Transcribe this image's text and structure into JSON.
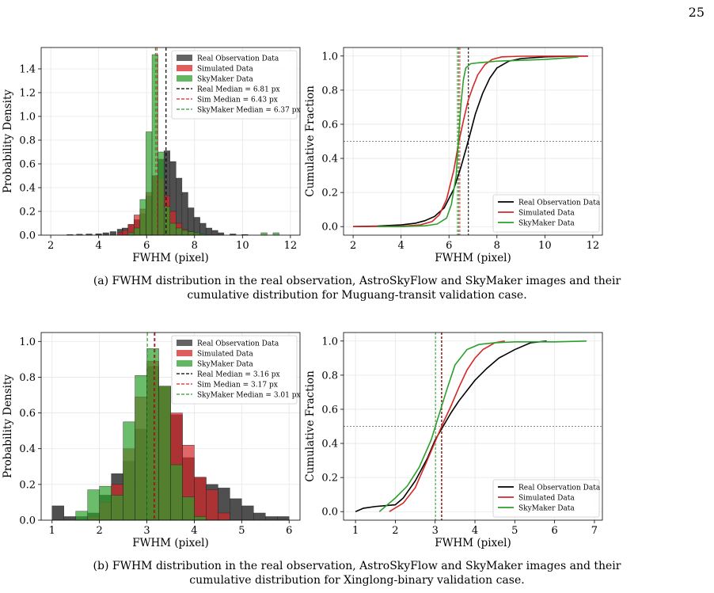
{
  "page_number": "25",
  "captions": {
    "a_line1": "(a) FWHM distribution in the real observation, AstroSkyFlow and SkyMaker images and their",
    "a_line2": "cumulative distribution for Muguang-transit validation case.",
    "b_line1": "(b) FWHM distribution in the real observation, AstroSkyFlow and SkyMaker images and their",
    "b_line2": "cumulative distribution for Xinglong-binary validation case."
  },
  "colors": {
    "real": "#000000",
    "sim": "#d62728",
    "sky": "#2ca02c",
    "real_fill": "#303030",
    "sim_fill": "#d62728",
    "sky_fill": "#2ca02c",
    "grid": "#e6e6e6",
    "half": "#888888"
  },
  "chart_data": [
    {
      "id": "a-hist",
      "type": "bar",
      "xlabel": "FWHM (pixel)",
      "ylabel": "Probability Density",
      "xlim": [
        1.6,
        12.4
      ],
      "ylim": [
        0,
        1.58
      ],
      "xticks": [
        2,
        4,
        6,
        8,
        10,
        12
      ],
      "yticks": [
        0.0,
        0.2,
        0.4,
        0.6,
        0.8,
        1.0,
        1.2,
        1.4
      ],
      "ytick_labels": [
        "0.0",
        "0.2",
        "0.4",
        "0.6",
        "0.8",
        "1.0",
        "1.2",
        "1.4"
      ],
      "legend_position": "top-right",
      "bin_width": 0.25,
      "series": [
        {
          "name": "Real Observation Data",
          "key": "real",
          "x": [
            2.8,
            3.2,
            3.6,
            4.0,
            4.3,
            4.6,
            4.9,
            5.1,
            5.35,
            5.6,
            5.85,
            6.1,
            6.35,
            6.6,
            6.85,
            7.1,
            7.35,
            7.6,
            7.85,
            8.1,
            8.35,
            8.6,
            8.85,
            9.1,
            9.6,
            10.1
          ],
          "values": [
            0.005,
            0.008,
            0.01,
            0.012,
            0.02,
            0.03,
            0.05,
            0.06,
            0.09,
            0.13,
            0.18,
            0.33,
            0.5,
            0.64,
            0.71,
            0.62,
            0.48,
            0.36,
            0.23,
            0.15,
            0.1,
            0.06,
            0.04,
            0.02,
            0.01,
            0.005
          ]
        },
        {
          "name": "Simulated Data",
          "key": "sim",
          "x": [
            4.9,
            5.1,
            5.35,
            5.6,
            5.85,
            6.1,
            6.35,
            6.6,
            6.85,
            7.1,
            7.35,
            7.6,
            7.85,
            8.1
          ],
          "values": [
            0.02,
            0.04,
            0.09,
            0.17,
            0.22,
            0.36,
            0.5,
            0.48,
            0.33,
            0.2,
            0.1,
            0.05,
            0.03,
            0.01
          ]
        },
        {
          "name": "SkyMaker Data",
          "key": "sky",
          "x": [
            5.35,
            5.6,
            5.85,
            6.1,
            6.35,
            6.6,
            6.85,
            7.1,
            7.35,
            7.6,
            7.85,
            8.1,
            8.35,
            10.9,
            11.4
          ],
          "values": [
            0.02,
            0.06,
            0.3,
            0.87,
            1.52,
            0.7,
            0.24,
            0.1,
            0.06,
            0.04,
            0.03,
            0.02,
            0.01,
            0.02,
            0.02
          ]
        }
      ],
      "medians": [
        {
          "name": "Real Median = 6.81 px",
          "key": "real",
          "value": 6.81
        },
        {
          "name": "Sim Median = 6.43 px",
          "key": "sim",
          "value": 6.43
        },
        {
          "name": "SkyMaker Median = 6.37 px",
          "key": "sky",
          "value": 6.37
        }
      ]
    },
    {
      "id": "a-cdf",
      "type": "line",
      "xlabel": "FWHM (pixel)",
      "ylabel": "Cumulative Fraction",
      "xlim": [
        1.6,
        12.4
      ],
      "ylim": [
        -0.05,
        1.05
      ],
      "xticks": [
        2,
        4,
        6,
        8,
        10,
        12
      ],
      "yticks": [
        0.0,
        0.2,
        0.4,
        0.6,
        0.8,
        1.0
      ],
      "ytick_labels": [
        "0.0",
        "0.2",
        "0.4",
        "0.6",
        "0.8",
        "1.0"
      ],
      "legend_position": "lower-right",
      "half_line": 0.5,
      "series": [
        {
          "name": "Real Observation Data",
          "key": "real",
          "x": [
            2.0,
            3.0,
            4.0,
            4.6,
            5.0,
            5.4,
            5.8,
            6.2,
            6.5,
            6.8,
            7.1,
            7.4,
            7.7,
            8.0,
            8.5,
            9.0,
            10.0,
            11.0,
            11.8
          ],
          "y": [
            0.0,
            0.003,
            0.01,
            0.02,
            0.035,
            0.06,
            0.11,
            0.22,
            0.35,
            0.5,
            0.66,
            0.78,
            0.87,
            0.93,
            0.97,
            0.985,
            0.995,
            0.999,
            1.0
          ]
        },
        {
          "name": "Simulated Data",
          "key": "sim",
          "x": [
            2.0,
            4.0,
            4.8,
            5.3,
            5.6,
            5.9,
            6.2,
            6.4,
            6.6,
            6.8,
            7.0,
            7.2,
            7.5,
            7.8,
            8.2,
            9.0,
            11.8
          ],
          "y": [
            0.0,
            0.002,
            0.01,
            0.03,
            0.07,
            0.16,
            0.33,
            0.49,
            0.62,
            0.74,
            0.82,
            0.89,
            0.95,
            0.98,
            0.995,
            0.999,
            1.0
          ]
        },
        {
          "name": "SkyMaker Data",
          "key": "sky",
          "x": [
            3.0,
            4.0,
            5.0,
            5.5,
            5.9,
            6.1,
            6.3,
            6.4,
            6.5,
            6.6,
            6.7,
            6.9,
            7.2,
            7.6,
            8.0,
            9.0,
            10.0,
            11.0,
            11.4
          ],
          "y": [
            0.0,
            0.0,
            0.005,
            0.015,
            0.05,
            0.13,
            0.3,
            0.52,
            0.72,
            0.86,
            0.93,
            0.955,
            0.96,
            0.965,
            0.97,
            0.975,
            0.98,
            0.99,
            0.995
          ]
        }
      ],
      "medians": [
        {
          "key": "real",
          "value": 6.81
        },
        {
          "key": "sim",
          "value": 6.43
        },
        {
          "key": "sky",
          "value": 6.37
        }
      ]
    },
    {
      "id": "b-hist",
      "type": "bar",
      "xlabel": "FWHM (pixel)",
      "ylabel": "Probability Density",
      "xlim": [
        0.77,
        6.23
      ],
      "ylim": [
        0,
        1.05
      ],
      "xticks": [
        1,
        2,
        3,
        4,
        5,
        6
      ],
      "yticks": [
        0.0,
        0.2,
        0.4,
        0.6,
        0.8,
        1.0
      ],
      "ytick_labels": [
        "0.0",
        "0.2",
        "0.4",
        "0.6",
        "0.8",
        "1.0"
      ],
      "legend_position": "top-right",
      "bin_width": 0.25,
      "series": [
        {
          "name": "Real Observation Data",
          "key": "real",
          "x": [
            1.125,
            1.375,
            1.625,
            1.875,
            2.125,
            2.375,
            2.625,
            2.875,
            3.125,
            3.375,
            3.625,
            3.875,
            4.125,
            4.375,
            4.625,
            4.875,
            5.125,
            5.375,
            5.625,
            5.875
          ],
          "values": [
            0.08,
            0.02,
            0.02,
            0.04,
            0.14,
            0.26,
            0.33,
            0.51,
            0.86,
            0.75,
            0.59,
            0.35,
            0.24,
            0.2,
            0.18,
            0.12,
            0.08,
            0.04,
            0.02,
            0.02
          ]
        },
        {
          "name": "Simulated Data",
          "key": "sim",
          "x": [
            1.875,
            2.125,
            2.375,
            2.625,
            2.875,
            3.125,
            3.375,
            3.625,
            3.875,
            4.125,
            4.375,
            4.625
          ],
          "values": [
            0.02,
            0.1,
            0.2,
            0.4,
            0.69,
            0.89,
            0.75,
            0.6,
            0.42,
            0.24,
            0.17,
            0.04
          ]
        },
        {
          "name": "SkyMaker Data",
          "key": "sky",
          "x": [
            1.625,
            1.875,
            2.125,
            2.375,
            2.625,
            2.875,
            3.125,
            3.375,
            3.625,
            3.875,
            4.125
          ],
          "values": [
            0.05,
            0.17,
            0.19,
            0.14,
            0.55,
            0.81,
            0.96,
            0.75,
            0.31,
            0.13,
            0.02
          ]
        }
      ],
      "medians": [
        {
          "name": "Real Median = 3.16 px",
          "key": "real",
          "value": 3.16
        },
        {
          "name": "Sim Median = 3.17 px",
          "key": "sim",
          "value": 3.17
        },
        {
          "name": "SkyMaker Median = 3.01 px",
          "key": "sky",
          "value": 3.01
        }
      ]
    },
    {
      "id": "b-cdf",
      "type": "line",
      "xlabel": "FWHM (pixel)",
      "ylabel": "Cumulative Fraction",
      "xlim": [
        0.7,
        7.2
      ],
      "ylim": [
        -0.05,
        1.05
      ],
      "xticks": [
        1,
        2,
        3,
        4,
        5,
        6,
        7
      ],
      "yticks": [
        0.0,
        0.2,
        0.4,
        0.6,
        0.8,
        1.0
      ],
      "ytick_labels": [
        "0.0",
        "0.2",
        "0.4",
        "0.6",
        "0.8",
        "1.0"
      ],
      "legend_position": "lower-right",
      "half_line": 0.5,
      "series": [
        {
          "name": "Real Observation Data",
          "key": "real",
          "x": [
            1.0,
            1.2,
            1.5,
            2.0,
            2.2,
            2.5,
            2.8,
            3.0,
            3.2,
            3.4,
            3.6,
            3.8,
            4.0,
            4.3,
            4.6,
            5.0,
            5.4,
            5.8
          ],
          "y": [
            0.0,
            0.02,
            0.03,
            0.04,
            0.08,
            0.18,
            0.31,
            0.42,
            0.5,
            0.58,
            0.65,
            0.71,
            0.77,
            0.84,
            0.9,
            0.95,
            0.99,
            1.0
          ]
        },
        {
          "name": "Simulated Data",
          "key": "sim",
          "x": [
            1.85,
            2.2,
            2.5,
            2.8,
            3.0,
            3.2,
            3.4,
            3.6,
            3.8,
            4.0,
            4.2,
            4.5,
            4.75
          ],
          "y": [
            0.0,
            0.05,
            0.14,
            0.3,
            0.41,
            0.52,
            0.62,
            0.73,
            0.83,
            0.9,
            0.95,
            0.99,
            1.0
          ]
        },
        {
          "name": "SkyMaker Data",
          "key": "sky",
          "x": [
            1.6,
            1.8,
            2.0,
            2.3,
            2.6,
            2.9,
            3.1,
            3.3,
            3.5,
            3.8,
            4.1,
            4.5,
            5.0,
            6.0,
            6.8
          ],
          "y": [
            0.0,
            0.04,
            0.08,
            0.15,
            0.26,
            0.42,
            0.57,
            0.72,
            0.86,
            0.95,
            0.98,
            0.99,
            0.995,
            0.995,
            1.0
          ]
        }
      ],
      "medians": [
        {
          "key": "real",
          "value": 3.16
        },
        {
          "key": "sim",
          "value": 3.17
        },
        {
          "key": "sky",
          "value": 3.01
        }
      ]
    }
  ]
}
